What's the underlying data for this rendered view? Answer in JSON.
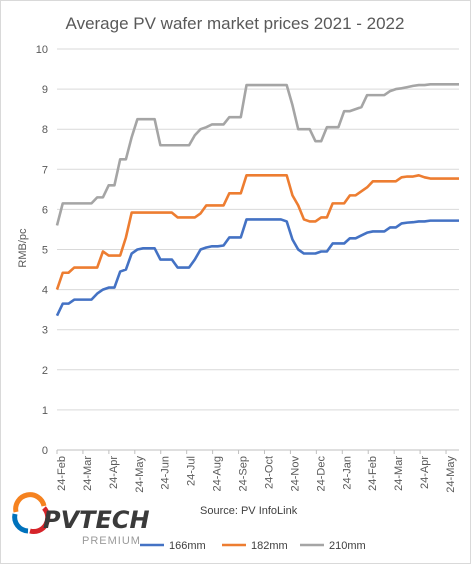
{
  "chart_data": {
    "type": "line",
    "title": "Average PV wafer market prices 2021 - 2022",
    "ylabel": "RMB/pc",
    "xlabel": "",
    "ylim": [
      0,
      10
    ],
    "yticks": [
      0,
      1,
      2,
      3,
      4,
      5,
      6,
      7,
      8,
      9,
      10
    ],
    "x_tick_labels": [
      "24-Feb",
      "24-Mar",
      "24-Apr",
      "24-May",
      "24-Jun",
      "24-Jul",
      "24-Aug",
      "24-Sep",
      "24-Oct",
      "24-Nov",
      "24-Dec",
      "24-Jan",
      "24-Feb",
      "24-Mar",
      "24-Apr",
      "24-May"
    ],
    "grid": true,
    "legend_position": "bottom",
    "series": [
      {
        "name": "166mm",
        "color": "#4472C4",
        "values": [
          3.35,
          3.65,
          3.65,
          3.75,
          3.75,
          3.75,
          3.75,
          3.9,
          4.0,
          4.05,
          4.05,
          4.45,
          4.5,
          4.9,
          5.0,
          5.03,
          5.03,
          5.03,
          4.75,
          4.75,
          4.75,
          4.55,
          4.55,
          4.55,
          4.75,
          5.0,
          5.05,
          5.08,
          5.08,
          5.1,
          5.3,
          5.3,
          5.3,
          5.75,
          5.75,
          5.75,
          5.75,
          5.75,
          5.75,
          5.75,
          5.7,
          5.25,
          5.0,
          4.9,
          4.9,
          4.9,
          4.95,
          4.95,
          5.15,
          5.15,
          5.15,
          5.28,
          5.28,
          5.35,
          5.42,
          5.45,
          5.45,
          5.45,
          5.55,
          5.55,
          5.65,
          5.67,
          5.68,
          5.7,
          5.7,
          5.72,
          5.72,
          5.72,
          5.72,
          5.72,
          5.72
        ]
      },
      {
        "name": "182mm",
        "color": "#ED7D31",
        "values": [
          4.0,
          4.42,
          4.42,
          4.55,
          4.55,
          4.55,
          4.55,
          4.55,
          4.95,
          4.85,
          4.85,
          4.85,
          5.3,
          5.92,
          5.92,
          5.92,
          5.92,
          5.92,
          5.92,
          5.92,
          5.92,
          5.8,
          5.8,
          5.8,
          5.8,
          5.9,
          6.1,
          6.1,
          6.1,
          6.1,
          6.4,
          6.4,
          6.4,
          6.85,
          6.85,
          6.85,
          6.85,
          6.85,
          6.85,
          6.85,
          6.85,
          6.35,
          6.1,
          5.75,
          5.7,
          5.7,
          5.8,
          5.8,
          6.15,
          6.15,
          6.15,
          6.35,
          6.35,
          6.45,
          6.55,
          6.7,
          6.7,
          6.7,
          6.7,
          6.7,
          6.8,
          6.82,
          6.82,
          6.85,
          6.8,
          6.77,
          6.77,
          6.77,
          6.77,
          6.77,
          6.77
        ]
      },
      {
        "name": "210mm",
        "color": "#A5A5A5",
        "values": [
          5.6,
          6.15,
          6.15,
          6.15,
          6.15,
          6.15,
          6.15,
          6.3,
          6.3,
          6.6,
          6.6,
          7.25,
          7.25,
          7.8,
          8.25,
          8.25,
          8.25,
          8.25,
          7.6,
          7.6,
          7.6,
          7.6,
          7.6,
          7.6,
          7.85,
          8.0,
          8.05,
          8.12,
          8.12,
          8.12,
          8.3,
          8.3,
          8.3,
          9.1,
          9.1,
          9.1,
          9.1,
          9.1,
          9.1,
          9.1,
          9.1,
          8.6,
          8.0,
          8.0,
          8.0,
          7.7,
          7.7,
          8.05,
          8.05,
          8.05,
          8.45,
          8.45,
          8.5,
          8.55,
          8.85,
          8.85,
          8.85,
          8.85,
          8.95,
          9.0,
          9.02,
          9.05,
          9.08,
          9.1,
          9.1,
          9.12,
          9.12,
          9.12,
          9.12,
          9.12,
          9.12
        ]
      }
    ],
    "source": "Source: PV InfoLink"
  },
  "logo": {
    "text_main": "PVTECH",
    "text_sub": "PREMIUM",
    "colors": {
      "main": "#3a3a3a",
      "sub": "#9a9a9a",
      "ring_orange": "#F58220",
      "ring_red": "#D6242A",
      "ring_blue": "#0072BC"
    }
  }
}
